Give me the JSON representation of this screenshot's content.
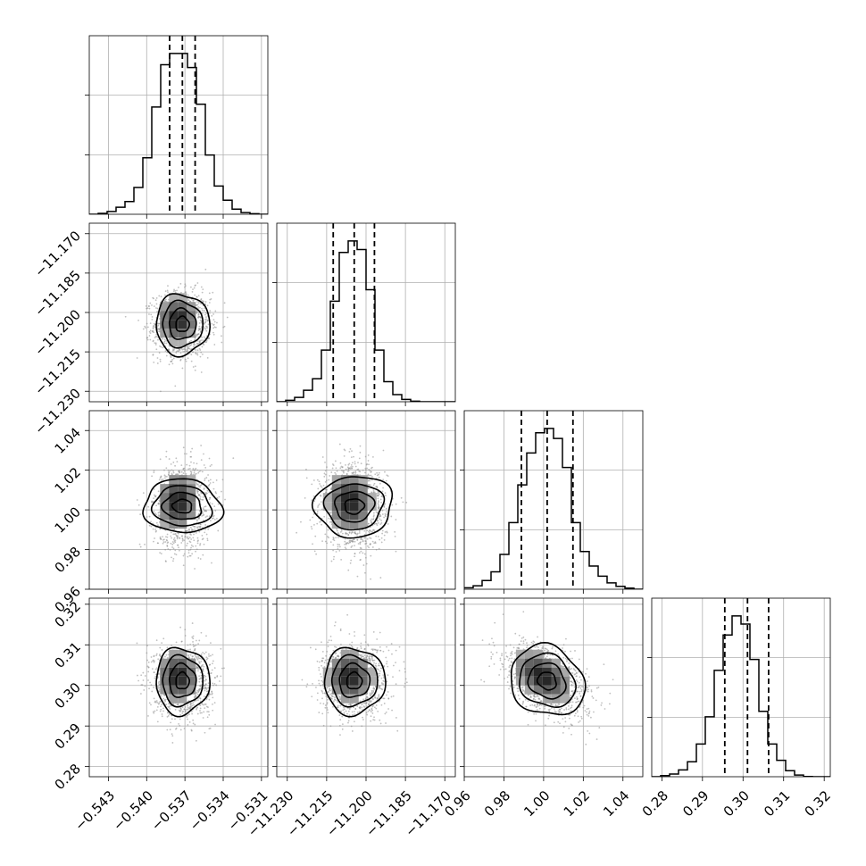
{
  "chart_data": {
    "type": "corner",
    "title": "",
    "parameters": [
      "",
      "",
      "",
      ""
    ],
    "ranges": [
      [
        -0.5445,
        -0.5305
      ],
      [
        -11.234,
        -11.166
      ],
      [
        0.96,
        1.05
      ],
      [
        0.2775,
        0.3215
      ]
    ],
    "ticks": [
      [
        -0.543,
        -0.54,
        -0.537,
        -0.534,
        -0.531
      ],
      [
        -11.23,
        -11.215,
        -11.2,
        -11.185,
        -11.17
      ],
      [
        0.96,
        0.98,
        1.0,
        1.02,
        1.04
      ],
      [
        0.28,
        0.29,
        0.3,
        0.31,
        0.32
      ]
    ],
    "tick_labels": [
      [
        "−0.543",
        "−0.540",
        "−0.537",
        "−0.534",
        "−0.531"
      ],
      [
        "−11.230",
        "−11.215",
        "−11.200",
        "−11.185",
        "−11.170"
      ],
      [
        "0.96",
        "0.98",
        "1.00",
        "1.02",
        "1.04"
      ],
      [
        "0.28",
        "0.29",
        "0.30",
        "0.31",
        "0.32"
      ]
    ],
    "grid": true,
    "marginals": [
      {
        "quantiles": [
          -0.5382,
          -0.5372,
          -0.5362
        ],
        "bin_edges": [
          -0.5445,
          -0.5438,
          -0.5431,
          -0.5424,
          -0.5417,
          -0.541,
          -0.5403,
          -0.5396,
          -0.5389,
          -0.5382,
          -0.5375,
          -0.5368,
          -0.5361,
          -0.5354,
          -0.5347,
          -0.534,
          -0.5333,
          -0.5326,
          -0.5319,
          -0.5312,
          -0.5305
        ],
        "counts": [
          0,
          3,
          10,
          25,
          45,
          95,
          200,
          380,
          530,
          570,
          570,
          520,
          390,
          210,
          100,
          50,
          18,
          6,
          2,
          0
        ]
      },
      {
        "quantiles": [
          -11.2125,
          -11.2045,
          -11.1968
        ],
        "bin_edges": [
          -11.234,
          -11.2306,
          -11.2272,
          -11.2238,
          -11.2204,
          -11.217,
          -11.2136,
          -11.2102,
          -11.2068,
          -11.2034,
          -11.2,
          -11.1966,
          -11.1932,
          -11.1898,
          -11.1864,
          -11.183,
          -11.1796,
          -11.1762,
          -11.1728,
          -11.1694,
          -11.166
        ],
        "counts": [
          0,
          5,
          15,
          40,
          80,
          180,
          350,
          520,
          560,
          530,
          390,
          180,
          70,
          25,
          8,
          2,
          0,
          0,
          0,
          0
        ]
      },
      {
        "quantiles": [
          0.9888,
          1.0018,
          1.0148
        ],
        "bin_edges": [
          0.96,
          0.9645,
          0.969,
          0.9735,
          0.978,
          0.9825,
          0.987,
          0.9915,
          0.996,
          1.0005,
          1.005,
          1.0095,
          1.014,
          1.0185,
          1.023,
          1.0275,
          1.032,
          1.0365,
          1.041,
          1.0455,
          1.05
        ],
        "counts": [
          5,
          12,
          30,
          60,
          120,
          230,
          360,
          470,
          540,
          555,
          520,
          420,
          230,
          130,
          80,
          45,
          22,
          10,
          4,
          0
        ]
      },
      {
        "quantiles": [
          0.2955,
          0.3011,
          0.3063
        ],
        "bin_edges": [
          0.2775,
          0.2797,
          0.2819,
          0.2841,
          0.2863,
          0.2885,
          0.2907,
          0.2929,
          0.2951,
          0.2973,
          0.2995,
          0.3017,
          0.3039,
          0.3061,
          0.3083,
          0.3105,
          0.3127,
          0.3149,
          0.3171,
          0.3193,
          0.3215
        ],
        "counts": [
          0,
          4,
          10,
          25,
          55,
          120,
          220,
          390,
          520,
          590,
          560,
          430,
          240,
          120,
          60,
          22,
          6,
          1,
          0,
          0
        ]
      }
    ],
    "pairs": [
      {
        "x_param": 0,
        "y_param": 1,
        "center": [
          -0.5372,
          -11.2045
        ],
        "spread": [
          0.00105,
          0.0058
        ],
        "correlation": 0.0
      },
      {
        "x_param": 0,
        "y_param": 2,
        "center": [
          -0.5372,
          1.0018
        ],
        "spread": [
          0.00105,
          0.0098
        ],
        "correlation": 0.05
      },
      {
        "x_param": 1,
        "y_param": 2,
        "center": [
          -11.2045,
          1.0018
        ],
        "spread": [
          0.0058,
          0.0098
        ],
        "correlation": -0.05
      },
      {
        "x_param": 0,
        "y_param": 3,
        "center": [
          -0.5372,
          0.3011
        ],
        "spread": [
          0.00105,
          0.0041
        ],
        "correlation": 0.0
      },
      {
        "x_param": 1,
        "y_param": 3,
        "center": [
          -11.2045,
          0.3011
        ],
        "spread": [
          0.0058,
          0.0041
        ],
        "correlation": 0.0
      },
      {
        "x_param": 2,
        "y_param": 3,
        "center": [
          1.0018,
          0.3011
        ],
        "spread": [
          0.0098,
          0.0041
        ],
        "correlation": -0.45
      }
    ],
    "contour_levels": [
      0.5,
      1.0,
      1.5,
      2.0
    ],
    "colors": {
      "line": "#000000",
      "grid": "#b0b0b0",
      "scatter": "#8c8c8c",
      "background": "#ffffff"
    }
  }
}
